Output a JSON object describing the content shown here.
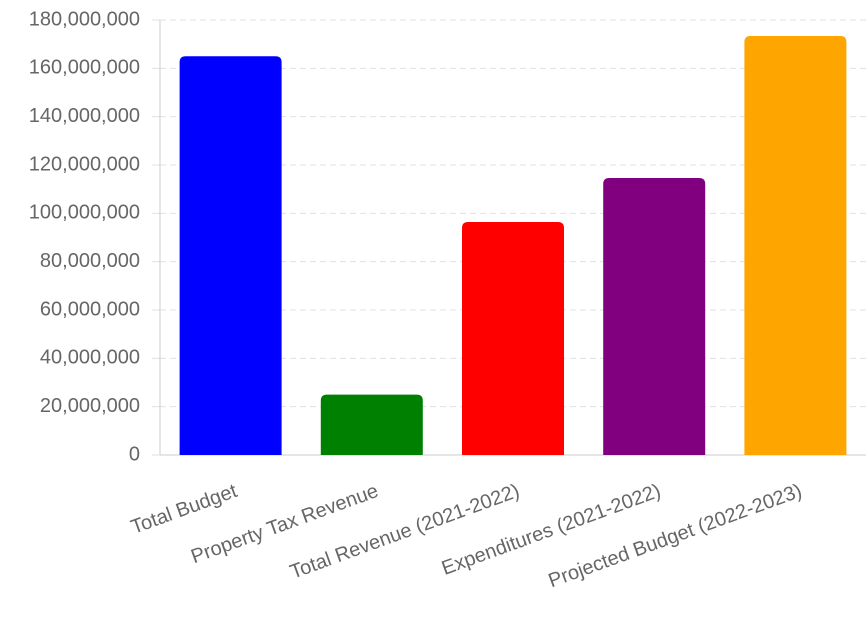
{
  "chart_data": {
    "type": "bar",
    "categories": [
      "Total Budget",
      "Property Tax Revenue",
      "Total Revenue (2021-2022)",
      "Expenditures (2021-2022)",
      "Projected Budget (2022-2023)"
    ],
    "values": [
      165000000,
      25000000,
      96400000,
      114600000,
      173400000
    ],
    "colors": [
      "#0000ff",
      "#008000",
      "#ff0000",
      "#800080",
      "#ffa500"
    ],
    "ylim": [
      0,
      180000000
    ],
    "yticks": [
      0,
      {
        "value": 20000000,
        "label": "20,000,000"
      },
      {
        "value": 40000000,
        "label": "40,000,000"
      },
      {
        "value": 60000000,
        "label": "60,000,000"
      },
      {
        "value": 80000000,
        "label": "80,000,000"
      },
      {
        "value": 100000000,
        "label": "100,000,000"
      },
      {
        "value": 120000000,
        "label": "120,000,000"
      },
      {
        "value": 140000000,
        "label": "140,000,000"
      },
      {
        "value": 160000000,
        "label": "160,000,000"
      },
      {
        "value": 180000000,
        "label": "180,000,000"
      }
    ],
    "grid": true
  }
}
